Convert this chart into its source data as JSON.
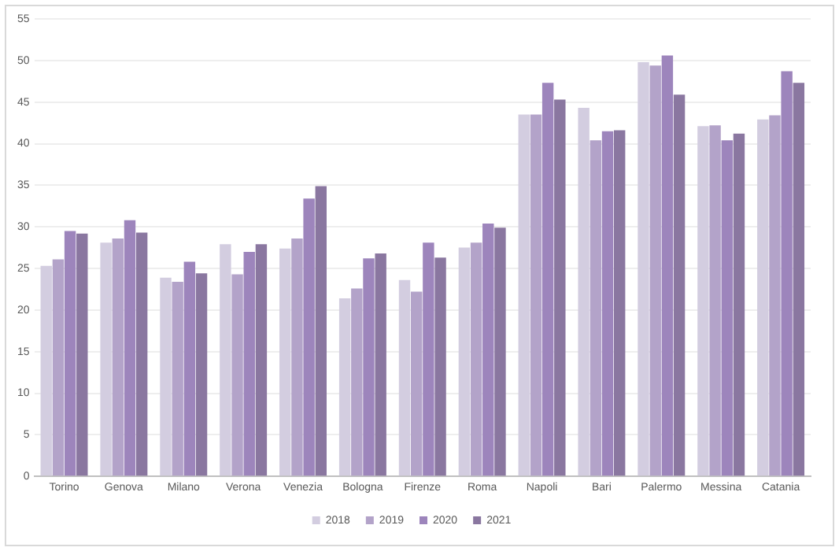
{
  "chart_data": {
    "type": "bar",
    "categories": [
      "Torino",
      "Genova",
      "Milano",
      "Verona",
      "Venezia",
      "Bologna",
      "Firenze",
      "Roma",
      "Napoli",
      "Bari",
      "Palermo",
      "Messina",
      "Catania"
    ],
    "series": [
      {
        "name": "2018",
        "color": "#d3cde0",
        "values": [
          25.3,
          28.1,
          23.9,
          27.9,
          27.4,
          21.4,
          23.6,
          27.5,
          43.5,
          44.3,
          49.8,
          42.1,
          42.9
        ]
      },
      {
        "name": "2019",
        "color": "#b3a3c9",
        "values": [
          26.1,
          28.6,
          23.4,
          24.3,
          28.6,
          22.6,
          22.2,
          28.1,
          43.5,
          40.4,
          49.4,
          42.2,
          43.4
        ]
      },
      {
        "name": "2020",
        "color": "#9d85bc",
        "values": [
          29.5,
          30.8,
          25.8,
          27.0,
          33.4,
          26.2,
          28.1,
          30.4,
          47.3,
          41.5,
          50.6,
          40.4,
          48.7
        ]
      },
      {
        "name": "2021",
        "color": "#8a77a0",
        "values": [
          29.2,
          29.3,
          24.4,
          27.9,
          34.9,
          26.8,
          26.3,
          29.9,
          45.3,
          41.6,
          45.9,
          41.2,
          47.3
        ]
      }
    ],
    "ylim": [
      0,
      55
    ],
    "yticks": [
      0,
      5,
      10,
      15,
      20,
      25,
      30,
      35,
      40,
      45,
      50,
      55
    ],
    "grid": "y",
    "legend": "bottom"
  }
}
